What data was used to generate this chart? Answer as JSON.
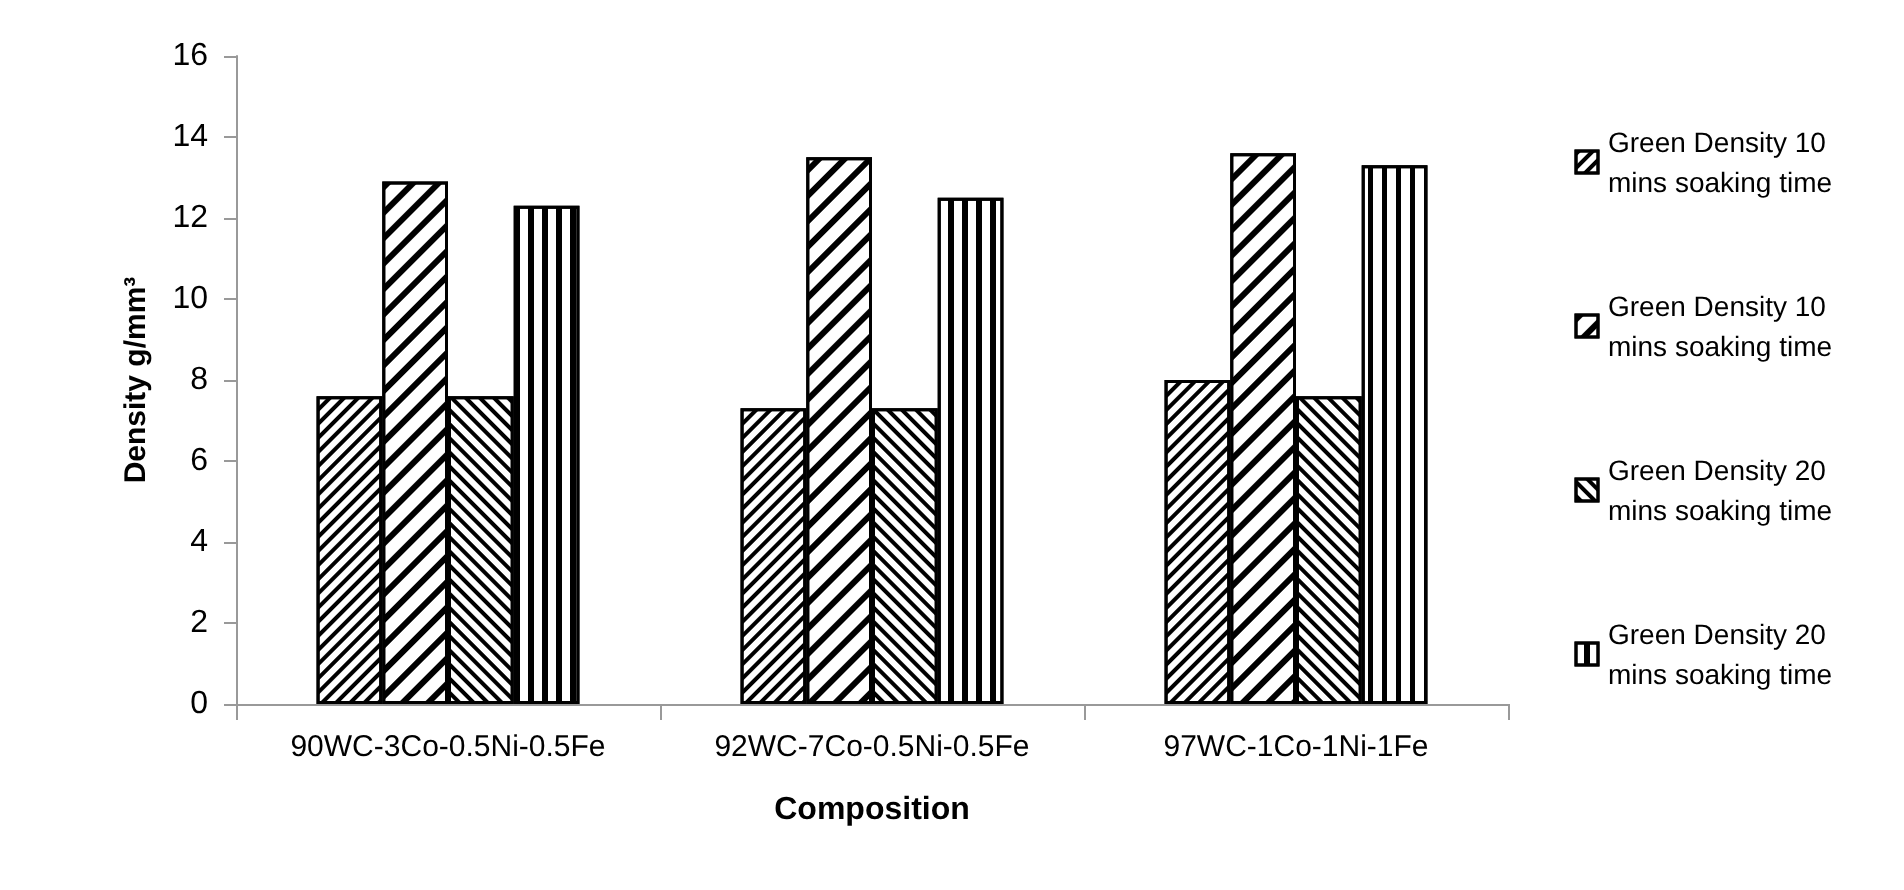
{
  "chart_data": {
    "type": "bar",
    "xlabel": "Composition",
    "ylabel": "Density g/mm³",
    "categories": [
      "90WC-3Co-0.5Ni-0.5Fe",
      "92WC-7Co-0.5Ni-0.5Fe",
      "97WC-1Co-1Ni-1Fe"
    ],
    "series": [
      {
        "name": "Green Density 10 mins soaking time",
        "color": "#000000",
        "values": [
          7.6,
          7.3,
          8.0
        ]
      },
      {
        "name": "Green Density 10 mins soaking time",
        "color": "#000000",
        "values": [
          12.9,
          13.5,
          13.6
        ]
      },
      {
        "name": "Green Density 20 mins soaking time",
        "color": "#000000",
        "values": [
          7.6,
          7.3,
          7.6
        ]
      },
      {
        "name": "Green Density 20 mins soaking time",
        "color": "#000000",
        "values": [
          12.3,
          12.5,
          13.3
        ]
      }
    ],
    "ylim": [
      0,
      16
    ],
    "yticks": [
      0,
      2,
      4,
      6,
      8,
      10,
      12,
      14,
      16
    ],
    "grid": false,
    "legend": "right"
  }
}
